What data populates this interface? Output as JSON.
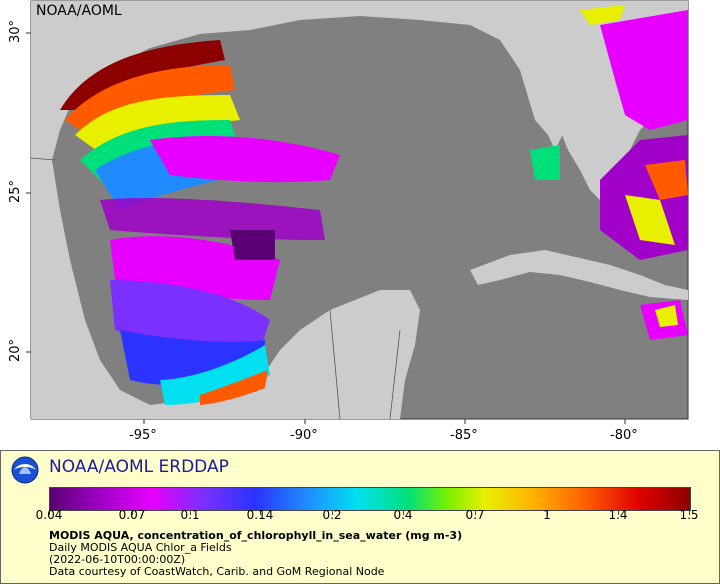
{
  "map": {
    "corner_label": "NOAA/AOML",
    "y_axis_labels": [
      "30°",
      "25°",
      "20°"
    ],
    "x_axis_labels": [
      "-95°",
      "-90°",
      "-85°",
      "-80°"
    ],
    "colors": {
      "land": "#cccccc",
      "ocean_no_data": "#808080",
      "border": "#555555"
    }
  },
  "legend": {
    "brand": "NOAA/AOML ERDDAP",
    "colorbar_ticks": [
      "0.04",
      "0.07",
      "0.1",
      "0.14",
      "0.2",
      "0.4",
      "0.7",
      "1",
      "1.4",
      "1.5"
    ],
    "variable": "MODIS AQUA, concentration_of_chlorophyll_in_sea_water (mg m-3)",
    "dataset": "Daily MODIS AQUA Chlor_a Fields",
    "time": "(2022-06-10T00:00:00Z)",
    "credit": "Data courtesy of CoastWatch, Carib. and GoM Regional Node"
  }
}
